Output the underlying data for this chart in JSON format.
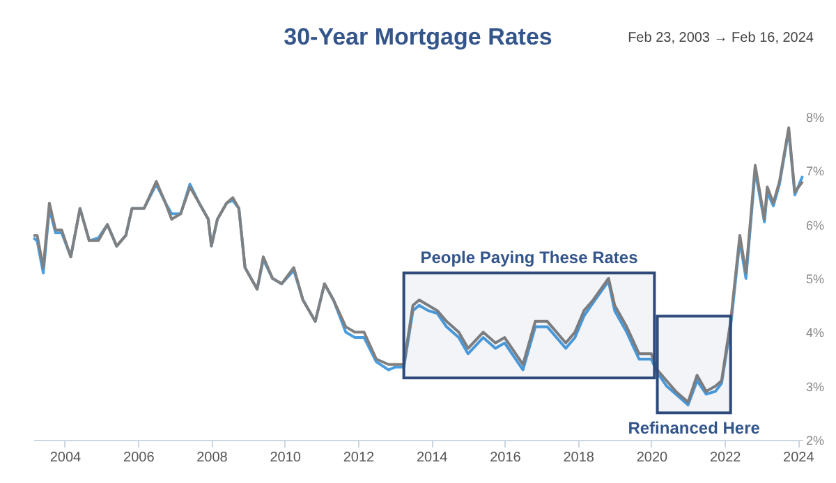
{
  "chart_data": {
    "type": "line",
    "title": "30-Year Mortgage Rates",
    "subtitle": "Feb 23, 2003 → Feb 16, 2024",
    "x": [
      "2003-02-23",
      "2003-04",
      "2003-06",
      "2003-08",
      "2003-10",
      "2003-12",
      "2004-03",
      "2004-06",
      "2004-09",
      "2004-12",
      "2005-03",
      "2005-06",
      "2005-09",
      "2005-11",
      "2006-03",
      "2006-07",
      "2006-10",
      "2006-12",
      "2007-03",
      "2007-06",
      "2007-09",
      "2007-12",
      "2008-01",
      "2008-03",
      "2008-06",
      "2008-08",
      "2008-10",
      "2008-12",
      "2009-04",
      "2009-06",
      "2009-09",
      "2009-12",
      "2010-04",
      "2010-07",
      "2010-11",
      "2011-02",
      "2011-05",
      "2011-09",
      "2011-12",
      "2012-03",
      "2012-07",
      "2012-11",
      "2013-01",
      "2013-04",
      "2013-07",
      "2013-09",
      "2013-12",
      "2014-03",
      "2014-06",
      "2014-10",
      "2015-01",
      "2015-06",
      "2015-10",
      "2016-01",
      "2016-07",
      "2016-11",
      "2017-03",
      "2017-09",
      "2017-12",
      "2018-03",
      "2018-06",
      "2018-11",
      "2019-01",
      "2019-05",
      "2019-09",
      "2020-01",
      "2020-03",
      "2020-06",
      "2020-09",
      "2021-01",
      "2021-04",
      "2021-07",
      "2021-10",
      "2021-12",
      "2022-03",
      "2022-06",
      "2022-08",
      "2022-11",
      "2023-02",
      "2023-03",
      "2023-05",
      "2023-07",
      "2023-10",
      "2023-12",
      "2024-02-16"
    ],
    "series": [
      {
        "color": "#4a9ee0",
        "values": [
          5.75,
          5.7,
          5.1,
          6.3,
          5.85,
          5.85,
          5.4,
          6.3,
          5.7,
          5.75,
          6.0,
          5.6,
          5.8,
          6.3,
          6.3,
          6.75,
          6.4,
          6.2,
          6.2,
          6.75,
          6.4,
          6.1,
          5.6,
          6.1,
          6.4,
          6.45,
          6.3,
          5.2,
          4.8,
          5.35,
          5.0,
          4.9,
          5.15,
          4.6,
          4.2,
          4.9,
          4.6,
          4.0,
          3.9,
          3.9,
          3.45,
          3.3,
          3.35,
          3.35,
          4.4,
          4.5,
          4.4,
          4.35,
          4.1,
          3.9,
          3.6,
          3.9,
          3.7,
          3.8,
          3.3,
          4.1,
          4.1,
          3.7,
          3.9,
          4.3,
          4.55,
          4.95,
          4.4,
          4.0,
          3.5,
          3.5,
          3.25,
          3.0,
          2.85,
          2.65,
          3.1,
          2.85,
          2.9,
          3.05,
          4.1,
          5.7,
          5.0,
          7.0,
          6.05,
          6.6,
          6.35,
          6.75,
          7.75,
          6.55,
          6.9
        ]
      },
      {
        "color": "#808080",
        "values": [
          5.8,
          5.8,
          5.2,
          6.4,
          5.9,
          5.9,
          5.4,
          6.3,
          5.7,
          5.7,
          6.0,
          5.6,
          5.8,
          6.3,
          6.3,
          6.8,
          6.4,
          6.1,
          6.2,
          6.7,
          6.4,
          6.1,
          5.6,
          6.1,
          6.4,
          6.5,
          6.3,
          5.2,
          4.8,
          5.4,
          5.0,
          4.9,
          5.2,
          4.6,
          4.2,
          4.9,
          4.6,
          4.1,
          4.0,
          4.0,
          3.5,
          3.4,
          3.4,
          3.4,
          4.5,
          4.6,
          4.5,
          4.4,
          4.2,
          4.0,
          3.7,
          4.0,
          3.8,
          3.9,
          3.4,
          4.2,
          4.2,
          3.8,
          4.0,
          4.4,
          4.6,
          5.0,
          4.5,
          4.1,
          3.6,
          3.6,
          3.3,
          3.1,
          2.9,
          2.7,
          3.2,
          2.9,
          3.0,
          3.1,
          4.2,
          5.8,
          5.1,
          7.1,
          6.1,
          6.7,
          6.4,
          6.8,
          7.8,
          6.6,
          6.8
        ]
      }
    ],
    "xlim": [
      "2003-02-23",
      "2024-02-16"
    ],
    "xticks": [
      "2004",
      "2006",
      "2008",
      "2010",
      "2012",
      "2014",
      "2016",
      "2018",
      "2020",
      "2022",
      "2024"
    ],
    "ylim": [
      2,
      8
    ],
    "yticks": [
      {
        "value": 2,
        "label": "2%"
      },
      {
        "value": 3,
        "label": "3%"
      },
      {
        "value": 4,
        "label": "4%"
      },
      {
        "value": 5,
        "label": "5%"
      },
      {
        "value": 6,
        "label": "6%"
      },
      {
        "value": 7,
        "label": "7%"
      },
      {
        "value": 8,
        "label": "8%"
      }
    ],
    "bands": [
      {
        "axis": "x",
        "from": "2013-04",
        "to": "2020-02",
        "color": "#2d4a7a"
      },
      {
        "axis": "x",
        "from": "2020-03",
        "to": "2022-03",
        "color": "#2d4a7a"
      }
    ],
    "annotations": [
      "People Paying These Rates",
      "Refinanced Here"
    ],
    "grid": false,
    "legend": false,
    "line_style": "solid",
    "marker": "none"
  }
}
